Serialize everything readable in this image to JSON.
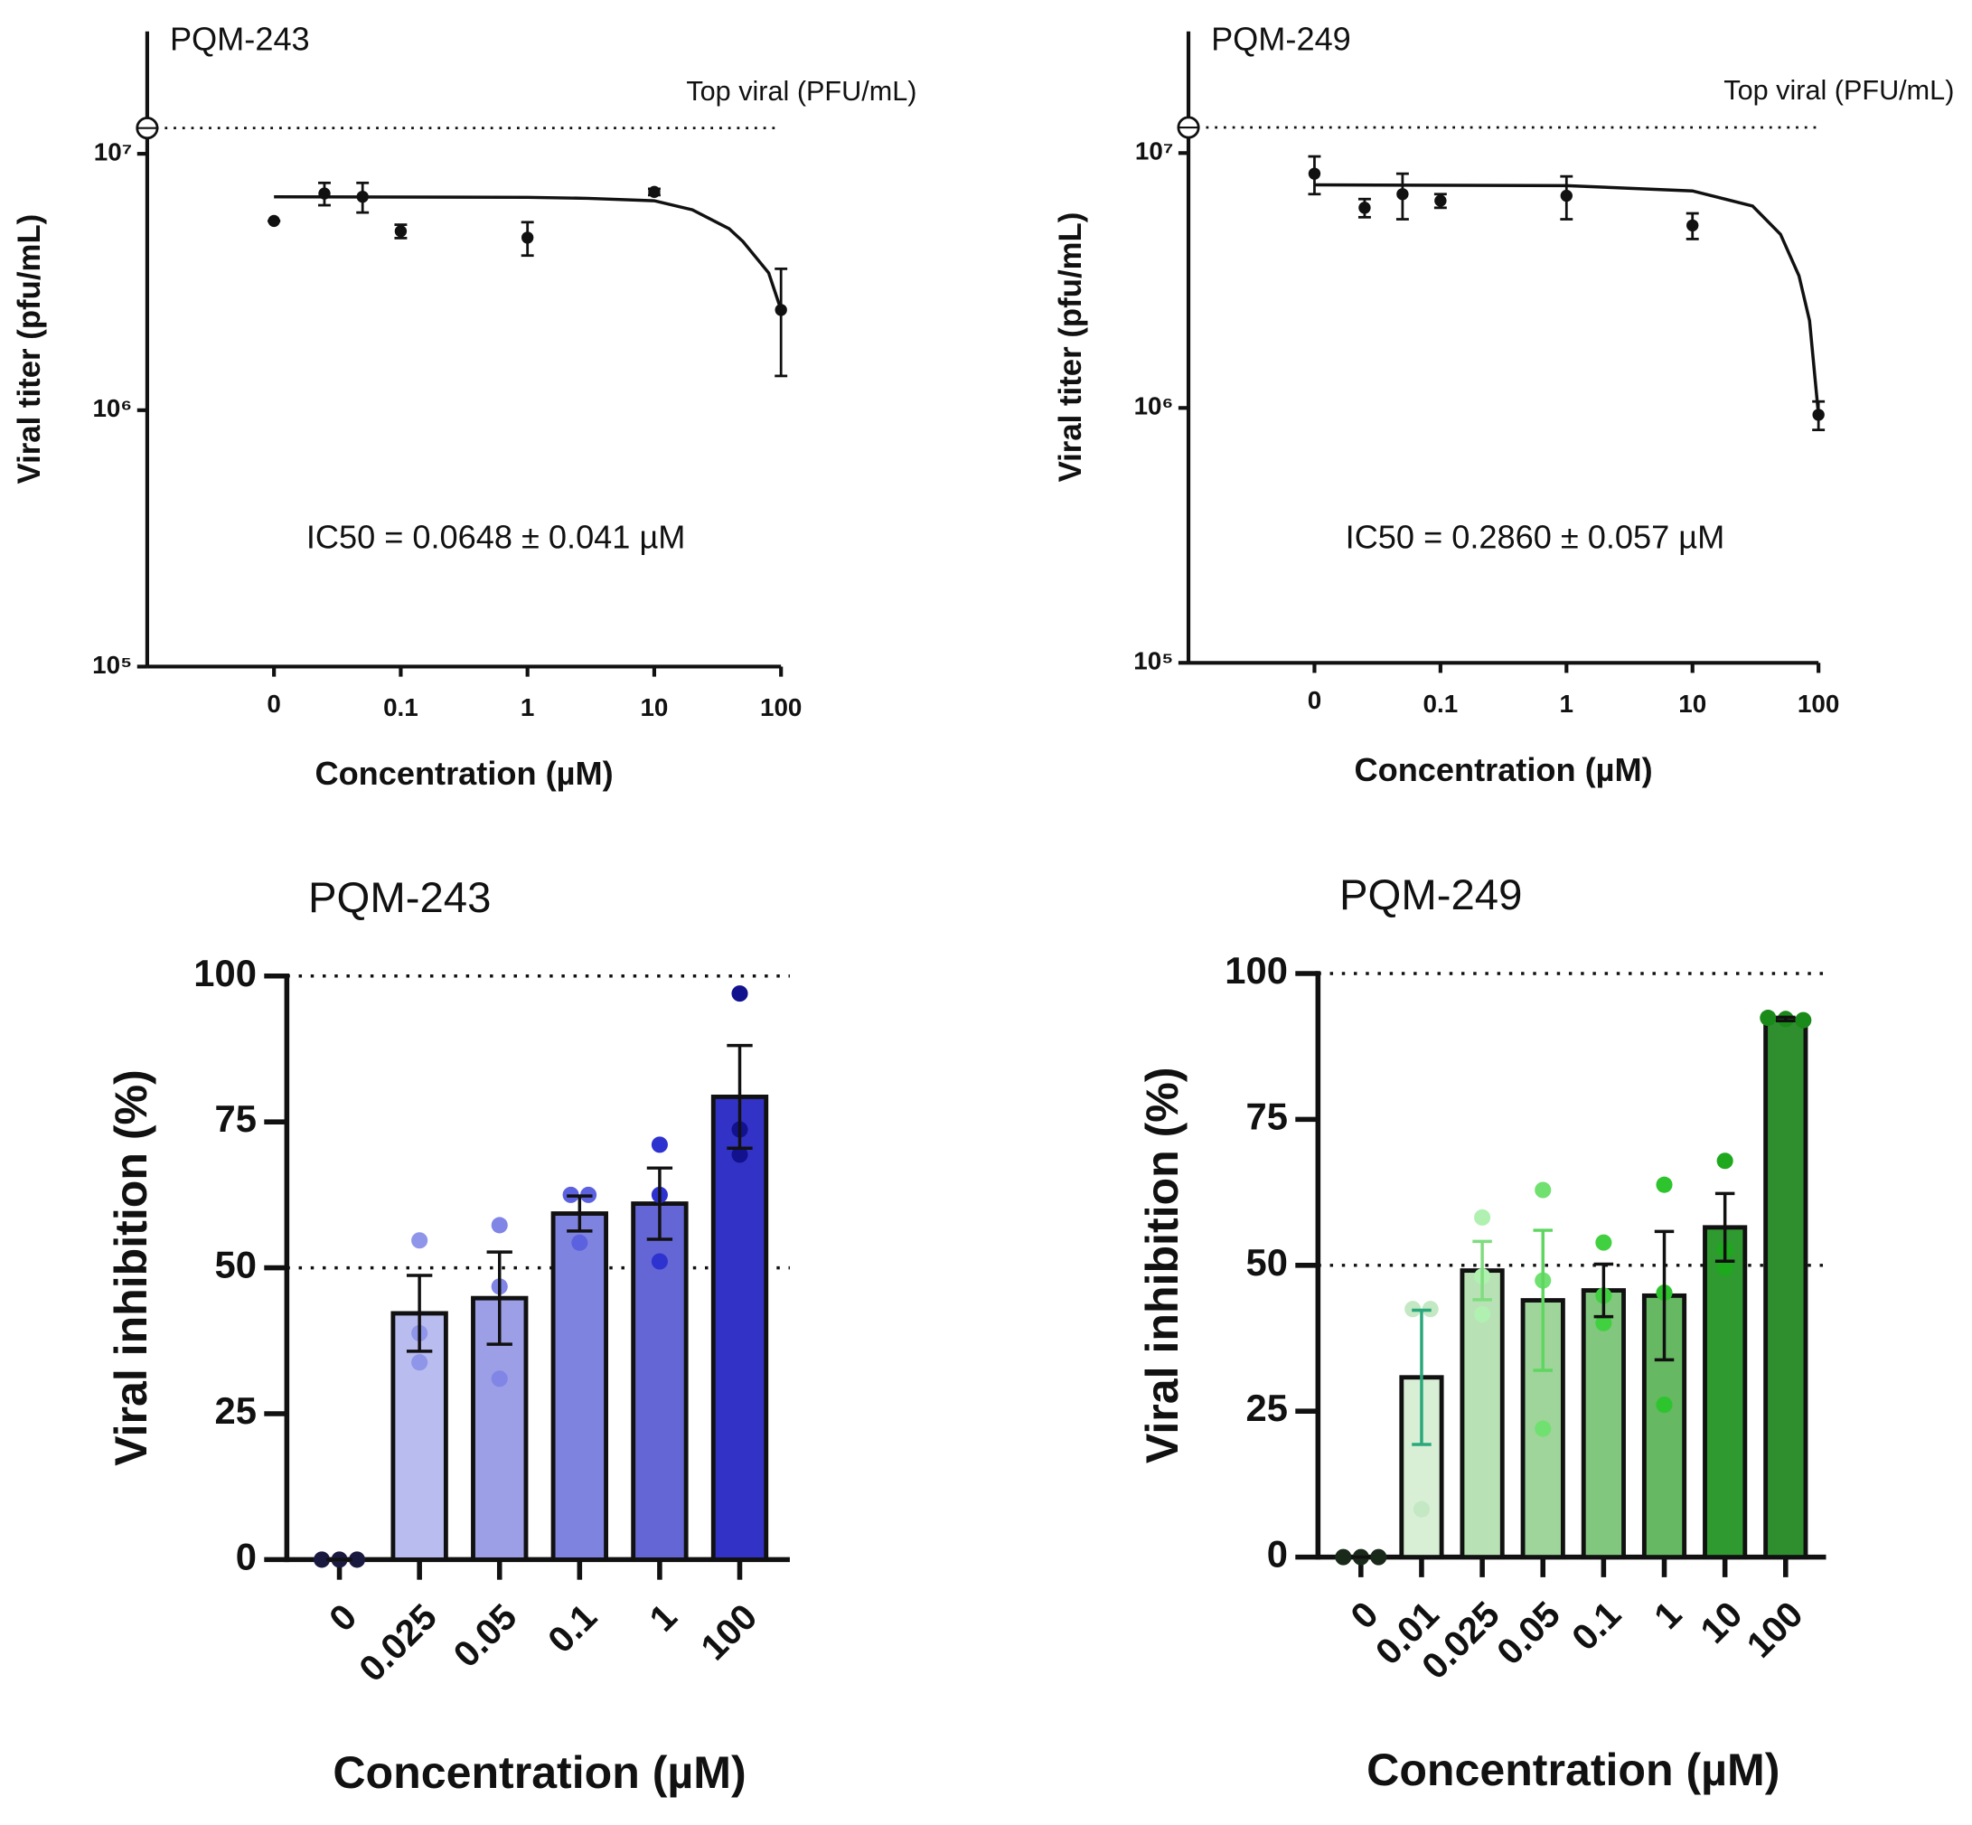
{
  "chart_data": [
    {
      "type": "scatter",
      "title": "PQM-243",
      "x_label": "Concentration (µM)",
      "y_label": "Viral titer (pfu/mL)",
      "log_x": true,
      "log_y": true,
      "color": "#111111",
      "xlim": [
        0.001,
        100
      ],
      "xticks": [
        {
          "value": 0.01,
          "label": "0"
        },
        0.1,
        1,
        10,
        100
      ],
      "ylim": [
        100000,
        30000000
      ],
      "yticks": [
        {
          "value": 100000,
          "label": "10⁵"
        },
        {
          "value": 1000000,
          "label": "10⁶"
        },
        {
          "value": 10000000,
          "label": "10⁷"
        }
      ],
      "x": [
        0.01,
        0.025,
        0.05,
        0.1,
        1,
        10,
        100
      ],
      "values": [
        5470000,
        7000000,
        6800000,
        4990000,
        4710000,
        7100000,
        2460000
      ],
      "errors": [
        0,
        700000,
        900000,
        300000,
        700000,
        200000,
        1100000
      ],
      "fit_x": [
        0.01,
        1,
        3,
        10,
        20,
        39,
        50,
        80,
        100
      ],
      "fit_values": [
        6790000,
        6760000,
        6700000,
        6560000,
        6050000,
        5100000,
        4550000,
        3430000,
        2460000
      ],
      "reference_line": {
        "value": 12600000,
        "label": "Top viral (PFU/mL)"
      },
      "annotation": "IC50 =  0.0648 ± 0.041 µM"
    },
    {
      "type": "scatter",
      "title": "PQM-249",
      "x_label": "Concentration (µM)",
      "y_label": "Viral titer (pfu/mL)",
      "log_x": true,
      "log_y": true,
      "color": "#111111",
      "xlim": [
        0.001,
        100
      ],
      "xticks": [
        {
          "value": 0.01,
          "label": "0"
        },
        0.1,
        1,
        10,
        100
      ],
      "ylim": [
        100000,
        30000000
      ],
      "yticks": [
        {
          "value": 100000,
          "label": "10⁵"
        },
        {
          "value": 1000000,
          "label": "10⁶"
        },
        {
          "value": 10000000,
          "label": "10⁷"
        }
      ],
      "x": [
        0.01,
        0.025,
        0.05,
        0.1,
        1,
        10,
        100
      ],
      "values": [
        8300000,
        6100000,
        6900000,
        6500000,
        6800000,
        5200000,
        940000
      ],
      "errors": [
        1400000,
        500000,
        1400000,
        400000,
        1300000,
        600000,
        120000
      ],
      "fit_x": [
        0.01,
        1,
        10,
        30,
        50,
        70,
        85,
        100
      ],
      "fit_values": [
        7500000,
        7450000,
        7100000,
        6200000,
        4800000,
        3300000,
        2200000,
        940000
      ],
      "reference_line": {
        "value": 12600000,
        "label": "Top viral (PFU/mL)"
      },
      "annotation": "IC50 = 0.2860 ± 0.057 µM"
    },
    {
      "type": "bar",
      "title": "PQM-243",
      "x_label": "Concentration (µM)",
      "y_label": "Viral inhibition (%)",
      "categories": [
        "0",
        "0.025",
        "0.05",
        "0.1",
        "1",
        "100"
      ],
      "values": [
        0,
        42.2,
        44.8,
        59.3,
        61.0,
        79.3
      ],
      "errors": [
        0,
        6.5,
        7.9,
        3,
        6.1,
        8.8
      ],
      "points": [
        [
          0,
          0,
          0
        ],
        [
          54.7,
          38.8,
          33.8
        ],
        [
          57.3,
          46.8,
          31.0
        ],
        [
          62.5,
          62.5,
          54.3
        ],
        [
          71.1,
          62.5,
          51.1
        ],
        [
          97.0,
          73.7,
          69.4
        ]
      ],
      "colors": [
        "#b9bcef",
        "#b9bcef",
        "#9c9fe6",
        "#7f83e0",
        "#6466d6",
        "#3232c7"
      ],
      "point_colors": [
        "#1a1a40",
        "#8f95e8",
        "#8085e6",
        "#5c61e0",
        "#2e33d0",
        "#12128f"
      ],
      "error_colors": [
        "#111111",
        "#111111",
        "#111111",
        "#111111",
        "#111111",
        "#111111"
      ],
      "ylim": [
        0,
        100
      ],
      "yticks": [
        0,
        25,
        50,
        75,
        100
      ],
      "reference_lines": [
        50,
        100
      ]
    },
    {
      "type": "bar",
      "title": "PQM-249",
      "x_label": "Concentration (µM)",
      "y_label": "Viral inhibition (%)",
      "categories": [
        "0",
        "0.01",
        "0.025",
        "0.05",
        "0.1",
        "1",
        "10",
        "100"
      ],
      "values": [
        0,
        30.8,
        49.1,
        44.0,
        45.7,
        44.8,
        56.5,
        92.2
      ],
      "errors": [
        0,
        11.5,
        5,
        12,
        4.5,
        11,
        5.8,
        0.3
      ],
      "points": [
        [
          0,
          0,
          0
        ],
        [
          42.5,
          42.5,
          8.2
        ],
        [
          58.2,
          48.1,
          41.6
        ],
        [
          62.9,
          47.4,
          22.0
        ],
        [
          53.9,
          44.8,
          40.1
        ],
        [
          63.8,
          45.3,
          26.1
        ],
        [
          67.9,
          52.6,
          49.6
        ],
        [
          92.4,
          92.2,
          92.0
        ]
      ],
      "colors": [
        "#d8efd5",
        "#d8efd5",
        "#b8e2b5",
        "#9fd59b",
        "#82c77e",
        "#66b862",
        "#2f9a2f",
        "#2f8f2f"
      ],
      "point_colors": [
        "#1a2a1a",
        "#c3e8c3",
        "#b0f0b0",
        "#70e070",
        "#40d040",
        "#2ec42e",
        "#1ea81e",
        "#1a8a1a"
      ],
      "error_colors": [
        "#111111",
        "#2aa87c",
        "#7fdc7f",
        "#5fd65f",
        "#111111",
        "#111111",
        "#111111",
        "#111111"
      ],
      "ylim": [
        0,
        100
      ],
      "yticks": [
        0,
        25,
        50,
        75,
        100
      ],
      "reference_lines": [
        50,
        100
      ]
    }
  ]
}
